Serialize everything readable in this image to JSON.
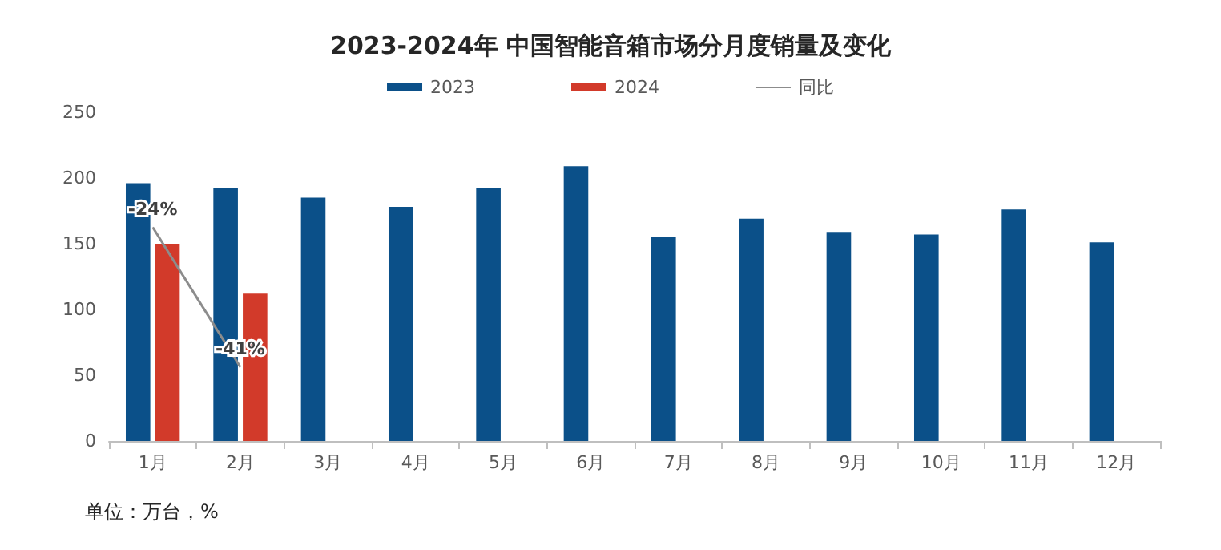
{
  "chart_data": {
    "type": "bar",
    "title": "2023-2024年 中国智能音箱市场分月度销量及变化",
    "categories": [
      "1月",
      "2月",
      "3月",
      "4月",
      "5月",
      "6月",
      "7月",
      "8月",
      "9月",
      "10月",
      "11月",
      "12月"
    ],
    "series": [
      {
        "name": "2023",
        "color": "#0b5089",
        "values": [
          196,
          192,
          185,
          178,
          192,
          209,
          155,
          169,
          159,
          157,
          176,
          151
        ]
      },
      {
        "name": "2024",
        "color": "#d23a2a",
        "values": [
          150,
          112,
          null,
          null,
          null,
          null,
          null,
          null,
          null,
          null,
          null,
          null
        ]
      },
      {
        "name": "同比",
        "type": "line",
        "axis": "y2",
        "color": "#8c8c8c",
        "marker": "none",
        "values": [
          -24,
          -41,
          null,
          null,
          null,
          null,
          null,
          null,
          null,
          null,
          null,
          null
        ],
        "value_labels": [
          "-24%",
          "-41%",
          null,
          null,
          null,
          null,
          null,
          null,
          null,
          null,
          null,
          null
        ]
      }
    ],
    "ylim": [
      0,
      250
    ],
    "yticks": [
      0,
      50,
      100,
      150,
      200,
      250
    ],
    "grid": false,
    "legend": "top",
    "annotations": [
      "单位：万台，%"
    ]
  }
}
